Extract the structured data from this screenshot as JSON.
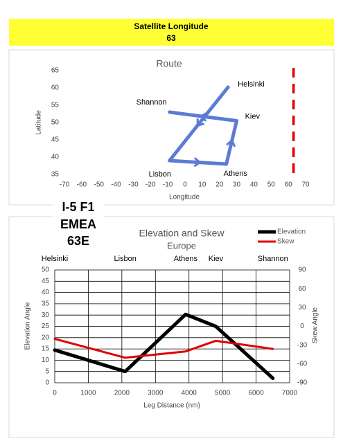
{
  "header": {
    "title": "Satellite Longitude"
  },
  "satellite_longitude": 63,
  "satellite_label": [
    "I-5 F1",
    "EMEA",
    "63E"
  ],
  "chart_data": [
    {
      "type": "line",
      "title": "Route",
      "x_label": "Longitude",
      "y_label": "Latitude",
      "xlim": [
        -70,
        70
      ],
      "xticks": [
        -70,
        -60,
        -50,
        -40,
        -30,
        -20,
        -10,
        0,
        10,
        20,
        30,
        40,
        50,
        60,
        70
      ],
      "ylim": [
        35,
        65
      ],
      "yticks": [
        35,
        40,
        45,
        50,
        55,
        60,
        65
      ],
      "grid": false,
      "series": [
        {
          "color": "#5b7bd5",
          "x": [
            25,
            -9,
            24,
            30,
            -9
          ],
          "values": [
            60.2,
            39,
            38,
            50.5,
            53
          ],
          "point_labels": [
            "Helsinki",
            "Lisbon",
            "Athens",
            "Kiev",
            "Shannon"
          ]
        }
      ]
    },
    {
      "type": "line",
      "title": "Elevation and Skew",
      "subtitle": "Europe",
      "x_label": "Leg Distance (nm)",
      "y_label": "Elevation Angle",
      "y2_label": "Skew Angle",
      "xlim": [
        0,
        7000
      ],
      "xticks": [
        0,
        1000,
        2000,
        3000,
        4000,
        5000,
        6000,
        7000
      ],
      "ylim": [
        0,
        50
      ],
      "yticks": [
        0,
        5,
        10,
        15,
        20,
        25,
        30,
        35,
        40,
        45,
        50
      ],
      "y2lim": [
        -90,
        90
      ],
      "y2ticks": [
        -90,
        -60,
        -30,
        0,
        30,
        60,
        90
      ],
      "grid": true,
      "legend": "top-right",
      "x": [
        0,
        2100,
        3900,
        4800,
        6500
      ],
      "x_top_labels": [
        "Helsinki",
        "Lisbon",
        "Athens",
        "Kiev",
        "Shannon"
      ],
      "series": [
        {
          "name": "Elevation",
          "color": "#000000",
          "values": [
            14.5,
            5,
            30.3,
            25,
            2
          ]
        },
        {
          "name": "Skew",
          "color": "#e00000",
          "axis": "y2",
          "values": [
            -20,
            -50,
            -40,
            -23,
            -36
          ]
        }
      ]
    }
  ]
}
